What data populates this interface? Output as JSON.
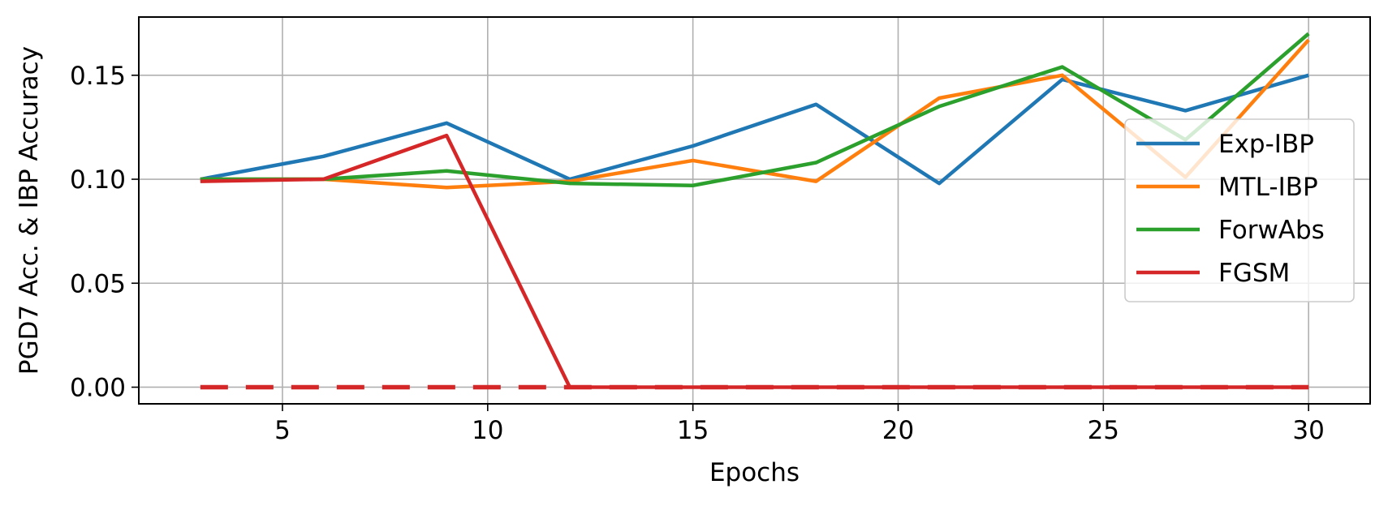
{
  "chart_data": {
    "type": "line",
    "title": "",
    "xlabel": "Epochs",
    "ylabel": "PGD7 Acc. & IBP Accuracy",
    "xlim": [
      1.5,
      31.5
    ],
    "ylim": [
      -0.008,
      0.178
    ],
    "xticks": [
      5,
      10,
      15,
      20,
      25,
      30
    ],
    "xtick_labels": [
      "5",
      "10",
      "15",
      "20",
      "25",
      "30"
    ],
    "yticks": [
      0.0,
      0.05,
      0.1,
      0.15
    ],
    "ytick_labels": [
      "0.00",
      "0.05",
      "0.10",
      "0.15"
    ],
    "grid": true,
    "legend_position": "center-right",
    "x": [
      3,
      6,
      9,
      12,
      15,
      18,
      21,
      24,
      27,
      30
    ],
    "series": [
      {
        "name": "Exp-IBP",
        "color": "#1f77b4",
        "style": "solid",
        "values": [
          0.1,
          0.111,
          0.127,
          0.1,
          0.116,
          0.136,
          0.098,
          0.148,
          0.133,
          0.15
        ]
      },
      {
        "name": "MTL-IBP",
        "color": "#ff7f0e",
        "style": "solid",
        "values": [
          0.1,
          0.1,
          0.096,
          0.099,
          0.109,
          0.099,
          0.139,
          0.15,
          0.101,
          0.167
        ]
      },
      {
        "name": "ForwAbs",
        "color": "#2ca02c",
        "style": "solid",
        "values": [
          0.1,
          0.1,
          0.104,
          0.098,
          0.097,
          0.108,
          0.135,
          0.154,
          0.119,
          0.17
        ]
      },
      {
        "name": "FGSM",
        "color": "#d62728",
        "style": "solid",
        "values": [
          0.099,
          0.1,
          0.121,
          0.0,
          0.0,
          0.0,
          0.0,
          0.0,
          0.0,
          0.0
        ]
      }
    ],
    "extra_lines": [
      {
        "series_ref": "FGSM",
        "color": "#d62728",
        "style": "dashed",
        "x": [
          3,
          30
        ],
        "values": [
          0.0,
          0.0
        ]
      }
    ]
  }
}
